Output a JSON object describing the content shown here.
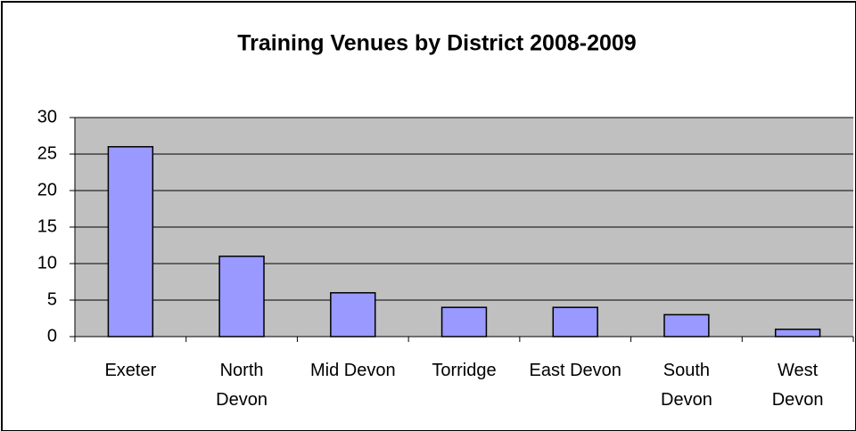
{
  "chart_data": {
    "type": "bar",
    "title": "Training Venues by District 2008-2009",
    "categories": [
      "Exeter",
      "North Devon",
      "Mid Devon",
      "Torridge",
      "East Devon",
      "South Devon",
      "West Devon"
    ],
    "values": [
      26,
      11,
      6,
      4,
      4,
      3,
      1
    ],
    "color": "#9999ff",
    "ylim": [
      0,
      30
    ],
    "yticks": [
      0,
      5,
      10,
      15,
      20,
      25,
      30
    ],
    "grid": true
  }
}
